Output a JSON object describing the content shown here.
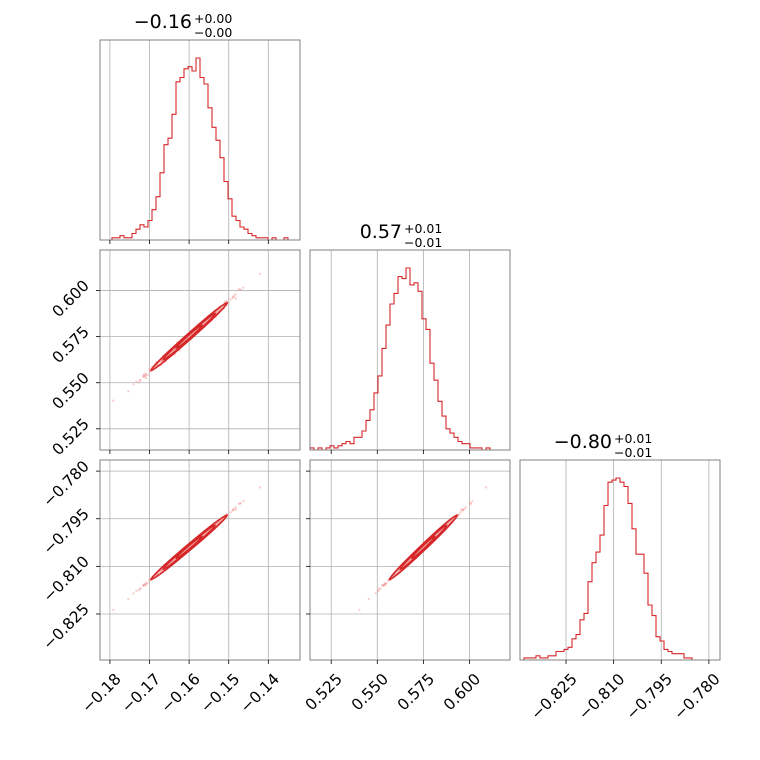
{
  "chart_data": {
    "type": "corner",
    "color": "#d62728",
    "params": [
      {
        "median": -0.16,
        "title_value": "−0.16",
        "title_plus": "+0.00",
        "title_minus": "−0.00",
        "sd": 0.0055,
        "range": [
          -0.1825,
          -0.132
        ],
        "ticks": [
          -0.18,
          -0.17,
          -0.16,
          -0.15,
          -0.14
        ],
        "tick_labels": [
          "−0.18",
          "−0.17",
          "−0.16",
          "−0.15",
          "−0.14"
        ]
      },
      {
        "median": 0.575,
        "title_value": "0.57",
        "title_plus": "+0.01",
        "title_minus": "−0.01",
        "sd": 0.0105,
        "range": [
          0.5135,
          0.622
        ],
        "ticks": [
          0.525,
          0.55,
          0.575,
          0.6
        ],
        "tick_labels": [
          "0.525",
          "0.550",
          "0.575",
          "0.600"
        ]
      },
      {
        "median": -0.804,
        "title_value": "−0.80",
        "title_plus": "+0.01",
        "title_minus": "−0.01",
        "sd": 0.0058,
        "range": [
          -0.8395,
          -0.7765
        ],
        "ticks": [
          -0.825,
          -0.81,
          -0.795,
          -0.78
        ],
        "tick_labels": [
          "−0.825",
          "−0.810",
          "−0.795",
          "−0.780"
        ]
      }
    ],
    "histograms": [
      [
        0,
        0,
        0,
        1,
        1,
        2,
        1,
        1,
        3,
        5,
        7,
        6,
        9,
        14,
        20,
        31,
        44,
        47,
        58,
        73,
        75,
        79,
        80,
        78,
        84,
        75,
        72,
        61,
        52,
        46,
        38,
        27,
        19,
        11,
        9,
        6,
        5,
        3,
        2,
        1,
        1,
        1,
        0,
        1,
        0,
        0,
        1,
        0,
        0,
        0
      ],
      [
        1,
        0,
        1,
        0,
        1,
        2,
        1,
        2,
        3,
        4,
        3,
        6,
        6,
        9,
        14,
        19,
        27,
        35,
        48,
        59,
        69,
        74,
        82,
        81,
        86,
        78,
        79,
        75,
        62,
        57,
        41,
        33,
        23,
        16,
        10,
        8,
        6,
        4,
        3,
        3,
        1,
        1,
        1,
        0,
        1,
        0,
        0,
        0,
        0,
        0
      ],
      [
        0,
        1,
        1,
        1,
        2,
        1,
        1,
        2,
        2,
        4,
        4,
        5,
        6,
        10,
        12,
        19,
        22,
        37,
        46,
        51,
        59,
        73,
        84,
        85,
        86,
        84,
        82,
        74,
        62,
        50,
        50,
        41,
        26,
        21,
        11,
        9,
        5,
        4,
        3,
        3,
        3,
        1,
        1,
        0,
        0,
        0,
        0,
        0,
        0,
        0
      ]
    ],
    "grid": true
  }
}
